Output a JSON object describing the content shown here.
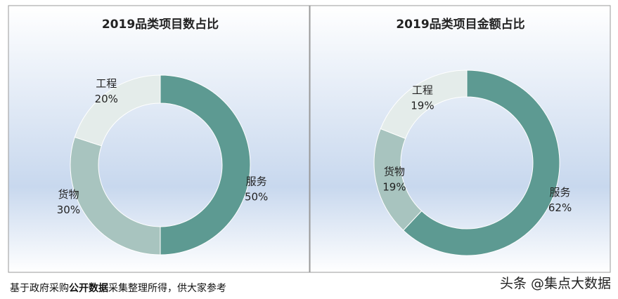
{
  "chart_data": [
    {
      "type": "pie",
      "title": "2019品类项目数占比",
      "categories": [
        "服务",
        "货物",
        "工程"
      ],
      "values": [
        50,
        30,
        20
      ],
      "value_labels": [
        "50%",
        "30%",
        "20%"
      ],
      "colors": [
        "#5d9a92",
        "#a8c4bf",
        "#e4ecea"
      ]
    },
    {
      "type": "pie",
      "title": "2019品类项目金额占比",
      "categories": [
        "服务",
        "货物",
        "工程"
      ],
      "values": [
        62,
        19,
        19
      ],
      "value_labels": [
        "62%",
        "19%",
        "19%"
      ],
      "colors": [
        "#5d9a92",
        "#a8c4bf",
        "#e4ecea"
      ]
    }
  ],
  "note": [
    "基于政府采购",
    "公开数据",
    "采集整理所得，供大家参考"
  ],
  "watermark": "头条 @集点大数据"
}
